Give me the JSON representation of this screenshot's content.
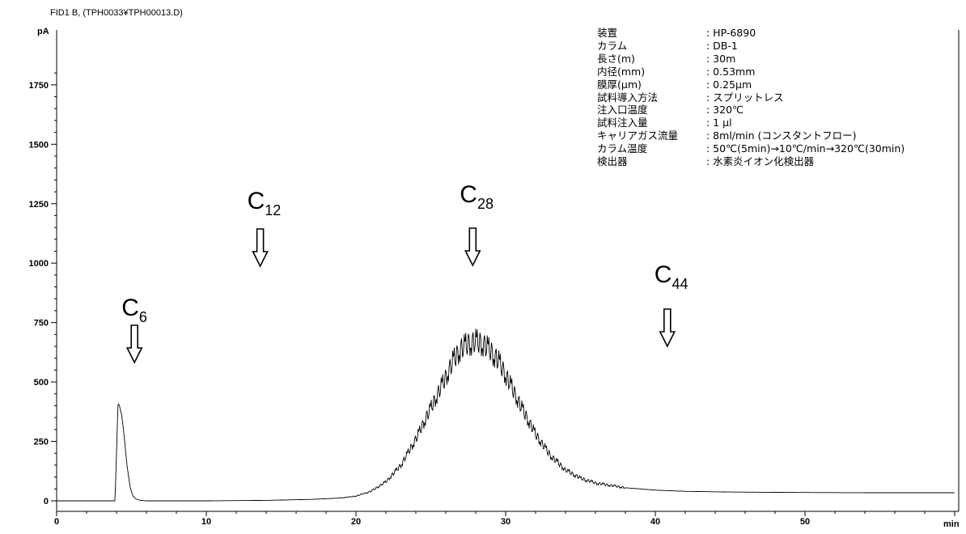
{
  "header": {
    "signal": "FID1 B, (TPH0033¥TPH00013.D)"
  },
  "info": [
    {
      "key": "装置",
      "value": ": HP-6890"
    },
    {
      "key": "カラム",
      "value": ": DB-1"
    },
    {
      "key": "長さ(m)",
      "value": ": 30m"
    },
    {
      "key": "内径(mm)",
      "value": ": 0.53mm"
    },
    {
      "key": "膜厚(μm)",
      "value": ": 0.25μm"
    },
    {
      "key": "試料導入方法",
      "value": ": スプリットレス"
    },
    {
      "key": "注入口温度",
      "value": ": 320℃"
    },
    {
      "key": "試料注入量",
      "value": ": 1 μl"
    },
    {
      "key": "キャリアガス流量",
      "value": ": 8ml/min (コンスタントフロー)"
    },
    {
      "key": "カラム温度",
      "value": ": 50℃(5min)→10℃/min→320℃(30min)"
    },
    {
      "key": "検出器",
      "value": ": 水素炎イオン化検出器"
    }
  ],
  "chart_data": {
    "type": "line",
    "xlabel": "min",
    "ylabel": "pA",
    "xlim": [
      0,
      60
    ],
    "ylim": [
      -40,
      1950
    ],
    "x_ticks": [
      0,
      10,
      20,
      30,
      40,
      50
    ],
    "y_ticks": [
      0,
      250,
      500,
      750,
      1000,
      1250,
      1500,
      1750
    ],
    "series": [
      {
        "x": [
          0,
          3.9,
          4.0,
          4.1,
          4.2,
          4.35,
          4.5,
          4.7,
          4.9,
          5.1,
          5.3,
          5.6,
          6,
          10,
          14,
          17,
          19,
          20,
          21,
          22,
          23,
          24,
          25,
          26,
          26.5,
          27,
          27.5,
          28,
          28.5,
          29,
          29.5,
          30,
          31,
          32,
          33,
          34,
          35,
          36,
          38,
          40,
          42,
          45,
          50,
          55,
          60
        ],
        "y": [
          0,
          0,
          200,
          410,
          400,
          360,
          280,
          150,
          60,
          20,
          8,
          2,
          0,
          0,
          2,
          6,
          12,
          20,
          40,
          80,
          150,
          260,
          390,
          520,
          590,
          640,
          660,
          670,
          660,
          630,
          590,
          530,
          400,
          280,
          190,
          130,
          95,
          75,
          55,
          45,
          40,
          37,
          35,
          34,
          34
        ]
      }
    ],
    "annotations": [
      {
        "label": "C",
        "sub": "6",
        "x": 5.2
      },
      {
        "label": "C",
        "sub": "12",
        "x": 13.6
      },
      {
        "label": "C",
        "sub": "28",
        "x": 27.8
      },
      {
        "label": "C",
        "sub": "44",
        "x": 40.8
      }
    ]
  }
}
